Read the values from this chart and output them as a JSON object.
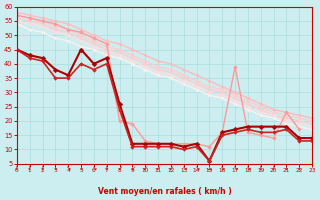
{
  "xlabel": "Vent moyen/en rafales ( km/h )",
  "ylim": [
    5,
    60
  ],
  "xlim": [
    0,
    23
  ],
  "yticks": [
    5,
    10,
    15,
    20,
    25,
    30,
    35,
    40,
    45,
    50,
    55,
    60
  ],
  "xticks": [
    0,
    1,
    2,
    3,
    4,
    5,
    6,
    7,
    8,
    9,
    10,
    11,
    12,
    13,
    14,
    15,
    16,
    17,
    18,
    19,
    20,
    21,
    22,
    23
  ],
  "bg_color": "#cceef0",
  "grid_color": "#aadddd",
  "series": [
    {
      "x": [
        0,
        1,
        2,
        3,
        4,
        5,
        6,
        7,
        8,
        9,
        10,
        11,
        12,
        13,
        14,
        15,
        16,
        17,
        18,
        19,
        20,
        21,
        22,
        23
      ],
      "y": [
        58,
        57,
        56,
        55,
        54,
        52,
        50,
        48,
        47,
        45,
        43,
        41,
        40,
        38,
        36,
        34,
        32,
        30,
        28,
        26,
        24,
        23,
        22,
        21
      ],
      "color": "#ffbbbb",
      "lw": 1.0,
      "marker": "D",
      "ms": 1.8
    },
    {
      "x": [
        0,
        1,
        2,
        3,
        4,
        5,
        6,
        7,
        8,
        9,
        10,
        11,
        12,
        13,
        14,
        15,
        16,
        17,
        18,
        19,
        20,
        21,
        22,
        23
      ],
      "y": [
        57,
        56,
        55,
        53,
        52,
        50,
        48,
        46,
        45,
        43,
        41,
        39,
        38,
        36,
        34,
        32,
        31,
        29,
        27,
        25,
        23,
        22,
        21,
        20
      ],
      "color": "#ffcccc",
      "lw": 1.0,
      "marker": "D",
      "ms": 1.8
    },
    {
      "x": [
        0,
        1,
        2,
        3,
        4,
        5,
        6,
        7,
        8,
        9,
        10,
        11,
        12,
        13,
        14,
        15,
        16,
        17,
        18,
        19,
        20,
        21,
        22,
        23
      ],
      "y": [
        56,
        55,
        54,
        52,
        51,
        49,
        47,
        45,
        44,
        42,
        40,
        38,
        37,
        35,
        33,
        31,
        30,
        28,
        26,
        24,
        22,
        21,
        20,
        19
      ],
      "color": "#ffcccc",
      "lw": 1.0,
      "marker": "D",
      "ms": 1.8
    },
    {
      "x": [
        0,
        1,
        2,
        3,
        4,
        5,
        6,
        7,
        8,
        9,
        10,
        11,
        12,
        13,
        14,
        15,
        16,
        17,
        18,
        19,
        20,
        21,
        22,
        23
      ],
      "y": [
        55,
        54,
        53,
        51,
        50,
        48,
        46,
        44,
        43,
        41,
        39,
        37,
        36,
        34,
        32,
        30,
        29,
        27,
        25,
        23,
        22,
        20,
        19,
        18
      ],
      "color": "#ffdddd",
      "lw": 1.0,
      "marker": "D",
      "ms": 1.8
    },
    {
      "x": [
        0,
        1,
        2,
        3,
        4,
        5,
        6,
        7,
        8,
        9,
        10,
        11,
        12,
        13,
        14,
        15,
        16,
        17,
        18,
        19,
        20,
        21,
        22,
        23
      ],
      "y": [
        54,
        52,
        51,
        49,
        48,
        46,
        45,
        43,
        42,
        40,
        38,
        36,
        35,
        33,
        31,
        29,
        28,
        26,
        24,
        22,
        21,
        19,
        18,
        17
      ],
      "color": "#ffeeee",
      "lw": 1.0,
      "marker": "D",
      "ms": 1.8
    },
    {
      "x": [
        0,
        1,
        2,
        3,
        4,
        5,
        6,
        7,
        8,
        9,
        10,
        11,
        12,
        13,
        14,
        15,
        16,
        17,
        18,
        19,
        20,
        21,
        22,
        23
      ],
      "y": [
        57,
        56,
        55,
        54,
        52,
        51,
        49,
        47,
        20,
        19,
        13,
        12,
        12,
        12,
        12,
        11,
        16,
        39,
        16,
        15,
        14,
        23,
        17,
        null
      ],
      "color": "#ff9999",
      "lw": 1.0,
      "marker": "D",
      "ms": 2.0
    },
    {
      "x": [
        0,
        1,
        2,
        3,
        4,
        5,
        6,
        7,
        8,
        9,
        10,
        11,
        12,
        13,
        14,
        15,
        16,
        17,
        18,
        19,
        20,
        21,
        22,
        23
      ],
      "y": [
        45,
        43,
        42,
        38,
        36,
        45,
        40,
        42,
        26,
        12,
        12,
        12,
        12,
        11,
        12,
        6,
        16,
        17,
        18,
        18,
        18,
        18,
        14,
        14
      ],
      "color": "#aa0000",
      "lw": 1.5,
      "marker": "D",
      "ms": 2.5
    },
    {
      "x": [
        0,
        1,
        2,
        3,
        4,
        5,
        6,
        7,
        8,
        9,
        10,
        11,
        12,
        13,
        14,
        15,
        16,
        17,
        18,
        19,
        20,
        21,
        22,
        23
      ],
      "y": [
        45,
        42,
        41,
        35,
        35,
        40,
        38,
        40,
        24,
        11,
        11,
        11,
        11,
        10,
        11,
        6,
        15,
        16,
        17,
        16,
        16,
        17,
        13,
        13
      ],
      "color": "#cc2222",
      "lw": 1.2,
      "marker": "D",
      "ms": 2.0
    }
  ],
  "arrow_chars": [
    "↓",
    "↓",
    "↓",
    "↓",
    "↘",
    "↓",
    "↘",
    "↓",
    "↙",
    "↙",
    "↙",
    "↙",
    "↙",
    "↘",
    "↘",
    "→",
    "↘",
    "↘",
    "↘",
    "↓",
    "↓",
    "↓",
    "↓"
  ]
}
